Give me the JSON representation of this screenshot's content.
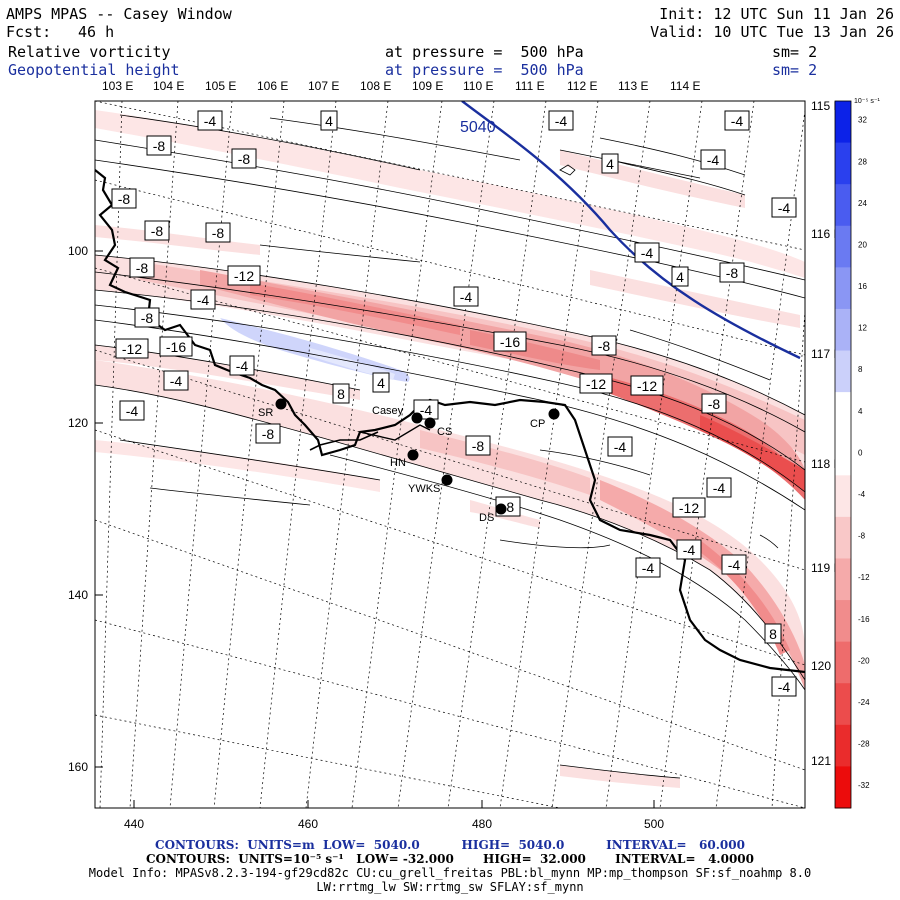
{
  "header": {
    "title": "AMPS MPAS -- Casey Window",
    "forecast_label": "Fcst:",
    "forecast_value": "46 h",
    "init": "Init: 12 UTC Sun 11 Jan 26",
    "valid": "Valid: 10 UTC Tue 13 Jan 26",
    "field1": "Relative vorticity",
    "field1_level": "at pressure =  500 hPa",
    "field1_sm": "sm= 2",
    "field2": "Geopotential height",
    "field2_level": "at pressure =  500 hPa",
    "field2_sm": "sm= 2"
  },
  "map": {
    "top_lon_labels": [
      "103 E",
      "104 E",
      "105 E",
      "106 E",
      "107 E",
      "108 E",
      "109 E",
      "110 E",
      "111 E",
      "112 E",
      "113 E",
      "114 E"
    ],
    "right_lon_labels": [
      "115 E",
      "116 E",
      "117 E",
      "118 E",
      "119 E",
      "120 E",
      "121 E"
    ],
    "y_ticks": [
      "100",
      "120",
      "140",
      "160"
    ],
    "x_ticks": [
      "440",
      "460",
      "480",
      "500"
    ],
    "height_contour_label": "5040",
    "stations": [
      {
        "id": "SR",
        "name": "SR"
      },
      {
        "id": "casey",
        "name": "Casey"
      },
      {
        "id": "CS",
        "name": "CS"
      },
      {
        "id": "HN",
        "name": "HN"
      },
      {
        "id": "YWKS",
        "name": "YWKS"
      },
      {
        "id": "DS",
        "name": "DS"
      },
      {
        "id": "CP",
        "name": "CP"
      }
    ],
    "vorticity_labels": [
      "-4",
      "4",
      "-4",
      "-4",
      "-8",
      "-8",
      "-4",
      "4",
      "-8",
      "-4",
      "-8",
      "-8",
      "-8",
      "-8",
      "-12",
      "4",
      "-4",
      "-4",
      "-4",
      "-8",
      "-16",
      "-8",
      "-12",
      "-16",
      "-12",
      "-12",
      "8",
      "-8",
      "-4",
      "-4",
      "4",
      "-4",
      "-8",
      "-4",
      "-8",
      "-4",
      "-4",
      "-12",
      "-8",
      "-4",
      "-4",
      "-4",
      "8",
      "-4"
    ]
  },
  "colorbar": {
    "unit": "10⁻⁵ s⁻¹",
    "ticks": [
      "32",
      "28",
      "24",
      "20",
      "16",
      "12",
      "8",
      "4",
      "0",
      "-4",
      "-8",
      "-12",
      "-16",
      "-20",
      "-24",
      "-28",
      "-32"
    ],
    "colors": [
      "#0c22e8",
      "#2a40ee",
      "#4a5cf0",
      "#6a7af2",
      "#8a96f4",
      "#aab2f7",
      "#cbd0fa",
      "#ffffff",
      "#ffffff",
      "#fde6e6",
      "#f9c8c8",
      "#f5aaaa",
      "#f18c8c",
      "#ee6c6c",
      "#ec4c4c",
      "#ea2c2c",
      "#ec0c0c"
    ]
  },
  "footer": {
    "line1": "CONTOURS:  UNITS=m  LOW=  5040.0          HIGH=  5040.0          INTERVAL=   60.000",
    "line2": "CONTOURS:  UNITS=10⁻⁵ s⁻¹   LOW= -32.000       HIGH=  32.000       INTERVAL=   4.0000",
    "line3": "Model Info: MPASv8.2.3-194-gf29cd82c CU:cu_grell_freitas PBL:bl_mynn MP:mp_thompson SF:sf_noahmp 8.0",
    "line4": "LW:rrtmg_lw SW:rrtmg_sw SFLAY:sf_mynn"
  }
}
